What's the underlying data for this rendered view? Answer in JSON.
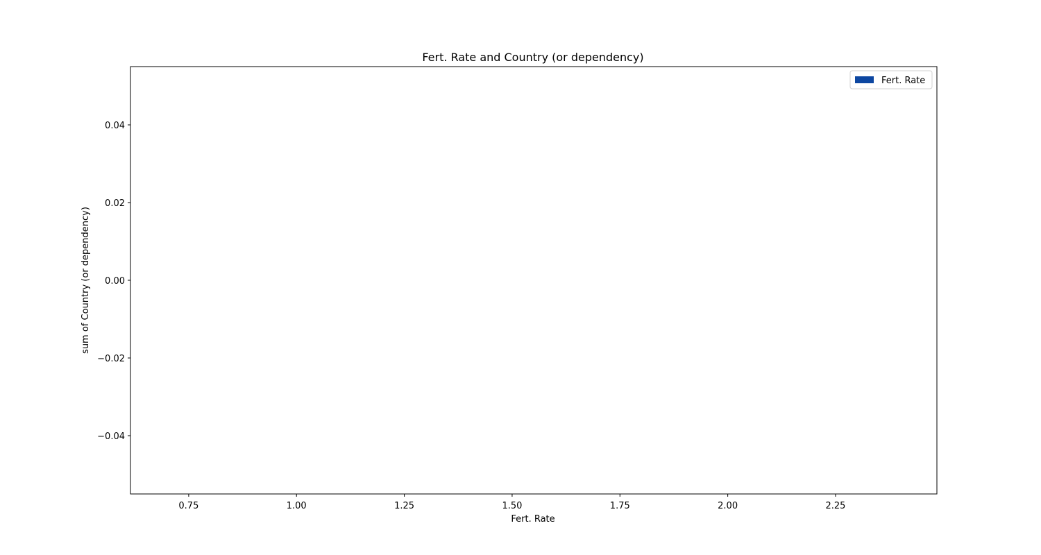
{
  "chart_data": {
    "type": "bar",
    "title": "Fert. Rate and Country (or dependency)",
    "xlabel": "Fert. Rate",
    "ylabel": "sum of Country (or dependency)",
    "xlim": [
      0.615,
      2.485
    ],
    "ylim": [
      -0.055,
      0.055
    ],
    "x_ticks": [
      "0.75",
      "1.00",
      "1.25",
      "1.50",
      "1.75",
      "2.00",
      "2.25"
    ],
    "x_tick_values": [
      0.75,
      1.0,
      1.25,
      1.5,
      1.75,
      2.0,
      2.25
    ],
    "y_ticks": [
      "0.04",
      "0.02",
      "0.00",
      "−0.02",
      "−0.04"
    ],
    "y_tick_values": [
      0.04,
      0.02,
      0.0,
      -0.02,
      -0.04
    ],
    "grid": false,
    "legend_position": "top-right",
    "series": [
      {
        "name": "Fert. Rate",
        "color": "#0d47a1",
        "values": []
      }
    ]
  }
}
